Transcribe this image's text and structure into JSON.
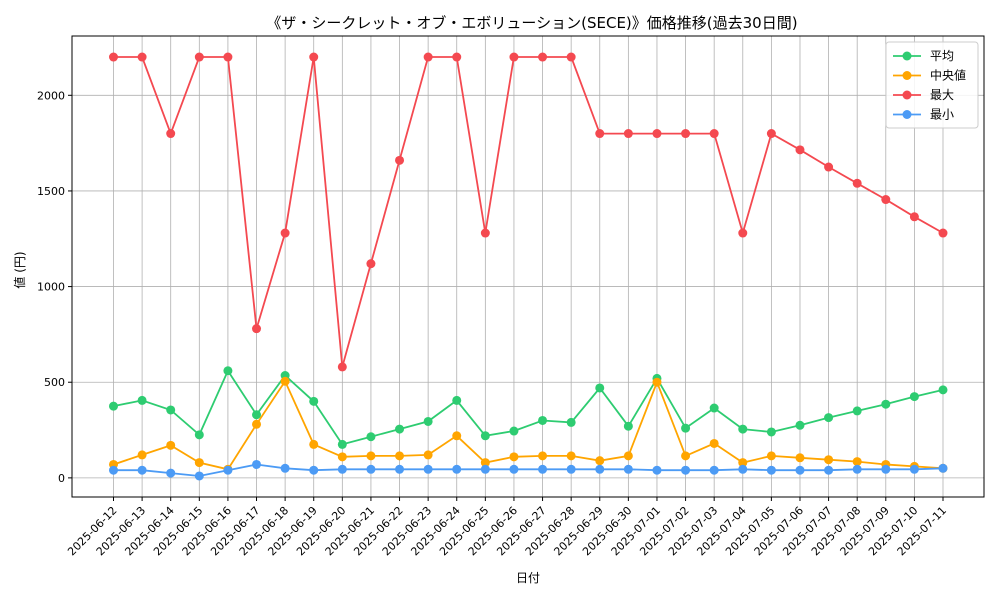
{
  "chart_data": {
    "type": "line",
    "title": "《ザ・シークレット・オブ・エボリューション(SECE)》価格推移(過去30日間)",
    "xlabel": "日付",
    "ylabel": "値 (円)",
    "ylim": [
      -100,
      2310
    ],
    "yticks": [
      0,
      500,
      1000,
      1500,
      2000
    ],
    "grid": true,
    "legend_position": "top-right",
    "categories": [
      "2025-06-12",
      "2025-06-13",
      "2025-06-14",
      "2025-06-15",
      "2025-06-16",
      "2025-06-17",
      "2025-06-18",
      "2025-06-19",
      "2025-06-20",
      "2025-06-21",
      "2025-06-22",
      "2025-06-23",
      "2025-06-24",
      "2025-06-25",
      "2025-06-26",
      "2025-06-27",
      "2025-06-28",
      "2025-06-29",
      "2025-06-30",
      "2025-07-01",
      "2025-07-02",
      "2025-07-03",
      "2025-07-04",
      "2025-07-05",
      "2025-07-06",
      "2025-07-07",
      "2025-07-08",
      "2025-07-09",
      "2025-07-10",
      "2025-07-11"
    ],
    "series": [
      {
        "name": "平均",
        "color": "#2ecc71",
        "values": [
          375,
          405,
          355,
          225,
          560,
          330,
          535,
          400,
          175,
          215,
          255,
          295,
          405,
          220,
          245,
          300,
          290,
          470,
          270,
          520,
          260,
          365,
          255,
          240,
          275,
          315,
          350,
          385,
          425,
          460
        ]
      },
      {
        "name": "中央値",
        "color": "#ffa500",
        "values": [
          70,
          120,
          170,
          80,
          45,
          280,
          505,
          175,
          110,
          115,
          115,
          120,
          220,
          80,
          110,
          115,
          115,
          90,
          115,
          500,
          115,
          180,
          80,
          115,
          105,
          95,
          85,
          70,
          60,
          50
        ]
      },
      {
        "name": "最大",
        "color": "#f44950",
        "values": [
          2200,
          2200,
          1800,
          2200,
          2200,
          780,
          1280,
          2200,
          580,
          1120,
          1660,
          2200,
          2200,
          1280,
          2200,
          2200,
          2200,
          1800,
          1800,
          1800,
          1800,
          1800,
          1280,
          1800,
          1715,
          1625,
          1540,
          1455,
          1365,
          1280
        ]
      },
      {
        "name": "最小",
        "color": "#4c9bf5",
        "values": [
          40,
          40,
          25,
          10,
          40,
          70,
          50,
          40,
          45,
          45,
          45,
          45,
          45,
          45,
          45,
          45,
          45,
          45,
          45,
          40,
          40,
          40,
          45,
          40,
          40,
          40,
          45,
          45,
          45,
          50
        ]
      }
    ]
  }
}
